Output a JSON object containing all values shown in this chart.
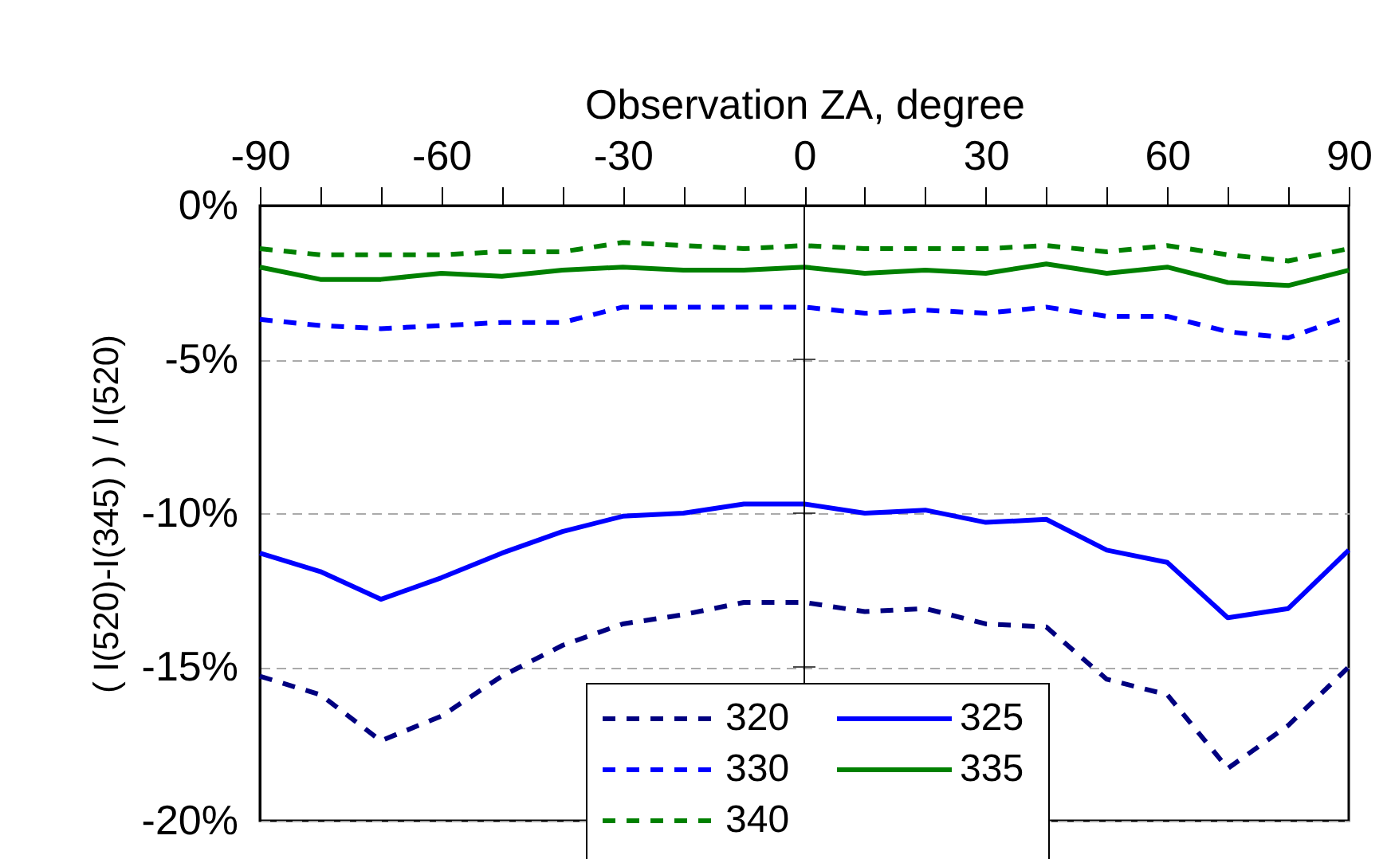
{
  "chart_data": {
    "type": "line",
    "xlabel": "Observation ZA, degree",
    "ylabel": "( I(520)-I(345) ) / I(520)",
    "x": [
      -90,
      -80,
      -70,
      -60,
      -50,
      -40,
      -30,
      -20,
      -10,
      0,
      10,
      20,
      30,
      40,
      50,
      60,
      70,
      80,
      90
    ],
    "series": [
      {
        "name": "320",
        "color": "#000080",
        "line_style": "dashed",
        "values": [
          -15.3,
          -15.9,
          -17.4,
          -16.6,
          -15.3,
          -14.3,
          -13.6,
          -13.3,
          -12.9,
          -12.9,
          -13.2,
          -13.1,
          -13.6,
          -13.7,
          -15.4,
          -15.9,
          -18.3,
          -16.9,
          -15.0
        ]
      },
      {
        "name": "325",
        "color": "#0000ff",
        "line_style": "solid",
        "values": [
          -11.3,
          -11.9,
          -12.8,
          -12.1,
          -11.3,
          -10.6,
          -10.1,
          -10.0,
          -9.7,
          -9.7,
          -10.0,
          -9.9,
          -10.3,
          -10.2,
          -11.2,
          -11.6,
          -13.4,
          -13.1,
          -11.2
        ]
      },
      {
        "name": "330",
        "color": "#0000ff",
        "line_style": "dashed",
        "values": [
          -3.7,
          -3.9,
          -4.0,
          -3.9,
          -3.8,
          -3.8,
          -3.3,
          -3.3,
          -3.3,
          -3.3,
          -3.5,
          -3.4,
          -3.5,
          -3.3,
          -3.6,
          -3.6,
          -4.1,
          -4.3,
          -3.6
        ]
      },
      {
        "name": "335",
        "color": "#008000",
        "line_style": "solid",
        "values": [
          -2.0,
          -2.4,
          -2.4,
          -2.2,
          -2.3,
          -2.1,
          -2.0,
          -2.1,
          -2.1,
          -2.0,
          -2.2,
          -2.1,
          -2.2,
          -1.9,
          -2.2,
          -2.0,
          -2.5,
          -2.6,
          -2.1
        ]
      },
      {
        "name": "340",
        "color": "#008000",
        "line_style": "dashed",
        "values": [
          -1.4,
          -1.6,
          -1.6,
          -1.6,
          -1.5,
          -1.5,
          -1.2,
          -1.3,
          -1.4,
          -1.3,
          -1.4,
          -1.4,
          -1.4,
          -1.3,
          -1.5,
          -1.3,
          -1.6,
          -1.8,
          -1.4
        ]
      }
    ],
    "xlim": [
      -90,
      90
    ],
    "xticks": [
      -90,
      {
        "value": -80,
        "label": null
      },
      {
        "value": -70,
        "label": null
      },
      -60,
      {
        "value": -50,
        "label": null
      },
      {
        "value": -40,
        "label": null
      },
      -30,
      {
        "value": -20,
        "label": null
      },
      {
        "value": -10,
        "label": null
      },
      0,
      {
        "value": 10,
        "label": null
      },
      {
        "value": 20,
        "label": null
      },
      30,
      {
        "value": 40,
        "label": null
      },
      {
        "value": 50,
        "label": null
      },
      60,
      {
        "value": 70,
        "label": null
      },
      {
        "value": 80,
        "label": null
      },
      90
    ],
    "ylim": [
      -20,
      0
    ],
    "yticks": [
      {
        "value": -20,
        "label": "-20%"
      },
      {
        "value": -15,
        "label": "-15%"
      },
      {
        "value": -10,
        "label": "-10%"
      },
      {
        "value": -5,
        "label": "-5%"
      },
      {
        "value": 0,
        "label": "0%"
      }
    ],
    "ref_lines": [
      {
        "axis": "x",
        "value": 0,
        "label": null,
        "color": "#000000"
      }
    ],
    "grid": "y",
    "legend": "bottom",
    "marker": "none"
  }
}
